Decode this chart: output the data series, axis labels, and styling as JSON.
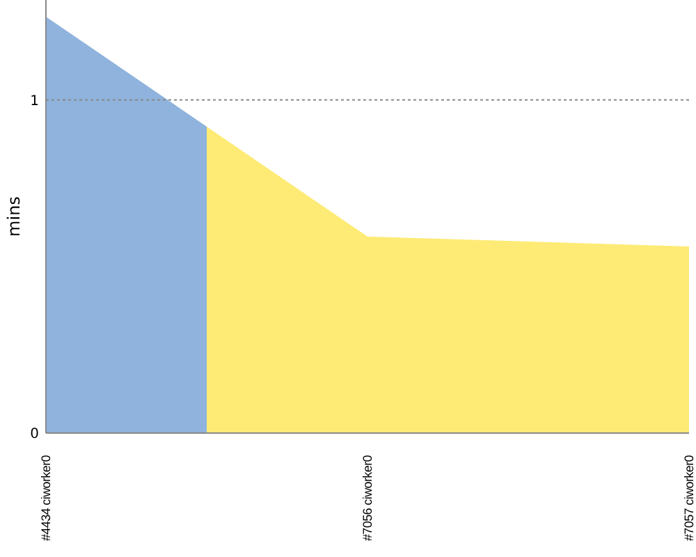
{
  "chart_data": {
    "type": "area",
    "ylabel": "mins",
    "categories": [
      "#4434 ciworker0",
      "#7056 ciworker0",
      "#7057 ciworker0"
    ],
    "values": [
      1.25,
      0.59,
      0.56
    ],
    "colors": [
      "#8fb3dc",
      "#fdeb76",
      "#fdeb76"
    ],
    "ylim": [
      0,
      1.3
    ],
    "yticks": [
      0,
      1
    ],
    "grid": "y",
    "line_style": "dotted"
  }
}
